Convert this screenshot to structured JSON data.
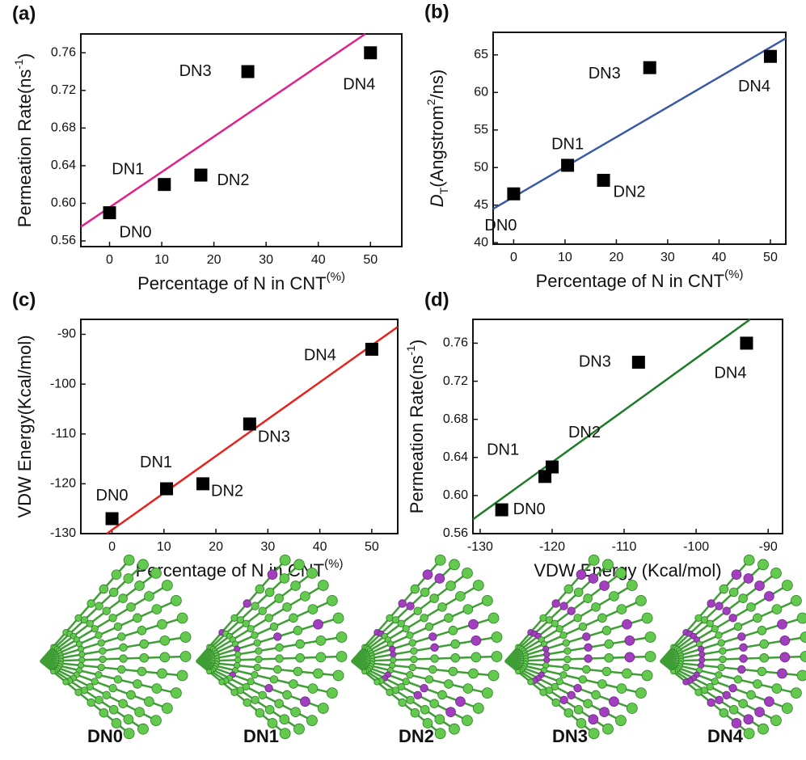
{
  "chart_data": [
    {
      "type": "scatter",
      "panel": "(a)",
      "x": [
        0,
        10.5,
        17.5,
        26.5,
        50
      ],
      "values": [
        0.59,
        0.62,
        0.63,
        0.74,
        0.76
      ],
      "labels": [
        "DN0",
        "DN1",
        "DN2",
        "DN3",
        "DN4"
      ],
      "color": "#000000",
      "fit_line": {
        "color": "#e0218a",
        "x": [
          -5.5,
          49
        ],
        "y": [
          0.575,
          0.78
        ]
      },
      "xlim": [
        -5.5,
        56
      ],
      "xticks": [
        0,
        10,
        20,
        30,
        40,
        50
      ],
      "ylim": [
        0.554,
        0.78
      ],
      "yticks": [
        0.56,
        {
          "value": 0.6,
          "label": "0.60"
        },
        0.64,
        0.68,
        0.72,
        0.76
      ],
      "xlabel": [
        {
          "text": "Percentage of N in CNT"
        },
        {
          "text": "(%)",
          "style": "small"
        }
      ],
      "ylabel": [
        {
          "text": "Permeation Rate(ns"
        },
        {
          "text": "-1",
          "style": "sup"
        },
        {
          "text": ")"
        }
      ]
    },
    {
      "type": "scatter",
      "panel": "(b)",
      "x": [
        0,
        10.5,
        17.5,
        26.5,
        50
      ],
      "values": [
        46.5,
        50.3,
        48.3,
        63.3,
        64.8
      ],
      "labels": [
        "DN0",
        "DN1",
        "DN2",
        "DN3",
        "DN4"
      ],
      "color": "#000000",
      "fit_line": {
        "color": "#3a5aa8",
        "x": [
          -4,
          53
        ],
        "y": [
          44.5,
          67.2
        ]
      },
      "xlim": [
        -4,
        53
      ],
      "xticks": [
        0,
        10,
        20,
        30,
        40,
        50
      ],
      "ylim": [
        39.8,
        68
      ],
      "yticks": [
        40,
        45,
        50,
        55,
        60,
        65
      ],
      "xlabel": [
        {
          "text": "Percentage of N in CNT"
        },
        {
          "text": "(%)",
          "style": "small"
        }
      ],
      "ylabel": [
        {
          "text": "D",
          "style": "italic"
        },
        {
          "text": "T",
          "style": "sub"
        },
        {
          "text": "(Angstrom"
        },
        {
          "text": "2",
          "style": "sup"
        },
        {
          "text": "/ns)"
        }
      ]
    },
    {
      "type": "scatter",
      "panel": "(c)",
      "x": [
        0,
        10.5,
        17.5,
        26.5,
        50
      ],
      "values": [
        -127,
        -121,
        -120,
        -108,
        -93
      ],
      "labels": [
        "DN0",
        "DN1",
        "DN2",
        "DN3",
        "DN4"
      ],
      "color": "#000000",
      "fit_line": {
        "color": "#e8221b",
        "x": [
          -1,
          55
        ],
        "y": [
          -130,
          -88.5
        ]
      },
      "xlim": [
        -6,
        55
      ],
      "xticks": [
        0,
        10,
        20,
        30,
        40,
        50
      ],
      "ylim": [
        -130,
        -87
      ],
      "yticks": [
        -130,
        -120,
        -110,
        -100,
        -90
      ],
      "xlabel": [
        {
          "text": "Percentage of N in CNT"
        },
        {
          "text": "(%)",
          "style": "small"
        }
      ],
      "ylabel": [
        {
          "text": "VDW Energy(Kcal/mol)"
        }
      ]
    },
    {
      "type": "scatter",
      "panel": "(d)",
      "x": [
        -127,
        -121,
        -120,
        -108,
        -93
      ],
      "values": [
        0.585,
        0.62,
        0.63,
        0.74,
        0.76
      ],
      "labels": [
        "DN0",
        "DN1",
        "DN2",
        "DN3",
        "DN4"
      ],
      "color": "#000000",
      "fit_line": {
        "color": "#1f7a2a",
        "x": [
          -131,
          -92.5
        ],
        "y": [
          0.575,
          0.785
        ]
      },
      "xlim": [
        -131,
        -88
      ],
      "xticks": [
        -130,
        -120,
        -110,
        -100,
        -90
      ],
      "ylim": [
        0.56,
        0.785
      ],
      "yticks": [
        0.56,
        {
          "value": 0.6,
          "label": "0.60"
        },
        0.64,
        0.68,
        0.72,
        0.76
      ],
      "xlabel": [
        {
          "text": "VDW Energy (Kcal/mol)"
        }
      ],
      "ylabel": [
        {
          "text": "Permeation Rate(ns"
        },
        {
          "text": "-1",
          "style": "sup"
        },
        {
          "text": ")"
        }
      ]
    }
  ],
  "structures": [
    "DN0",
    "DN1",
    "DN2",
    "DN3",
    "DN4"
  ]
}
